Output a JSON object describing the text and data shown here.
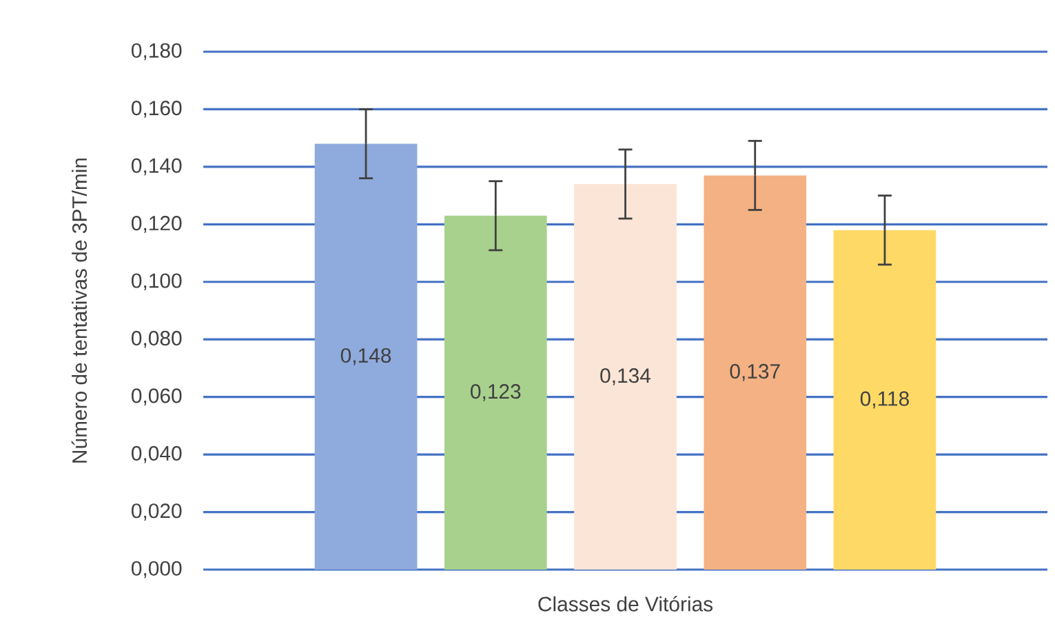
{
  "chart_data": {
    "type": "bar",
    "ylabel": "Número de tentativas de 3PT/min",
    "xlabel": "Classes de Vitórias",
    "categories": [
      null,
      null,
      null,
      null,
      null
    ],
    "values": [
      0.148,
      0.123,
      0.134,
      0.137,
      0.118
    ],
    "colors": [
      "#8faadc",
      "#a9d18e",
      "#fbe5d6",
      "#f4b183",
      "#ffd966"
    ],
    "errors": [
      0.012,
      0.012,
      0.012,
      0.012,
      0.012
    ],
    "value_labels": [
      "0,148",
      "0,123",
      "0,134",
      "0,137",
      "0,118"
    ],
    "ylim": [
      0,
      0.18
    ],
    "yticks": [
      {
        "value": 0,
        "label": "0,000"
      },
      {
        "value": 0.02,
        "label": "0,020"
      },
      {
        "value": 0.04,
        "label": "0,040"
      },
      {
        "value": 0.06,
        "label": "0,060"
      },
      {
        "value": 0.08,
        "label": "0,080"
      },
      {
        "value": 0.1,
        "label": "0,100"
      },
      {
        "value": 0.12,
        "label": "0,120"
      },
      {
        "value": 0.14,
        "label": "0,140"
      },
      {
        "value": 0.16,
        "label": "0,160"
      },
      {
        "value": 0.18,
        "label": "0,180"
      }
    ],
    "grid": "y"
  }
}
